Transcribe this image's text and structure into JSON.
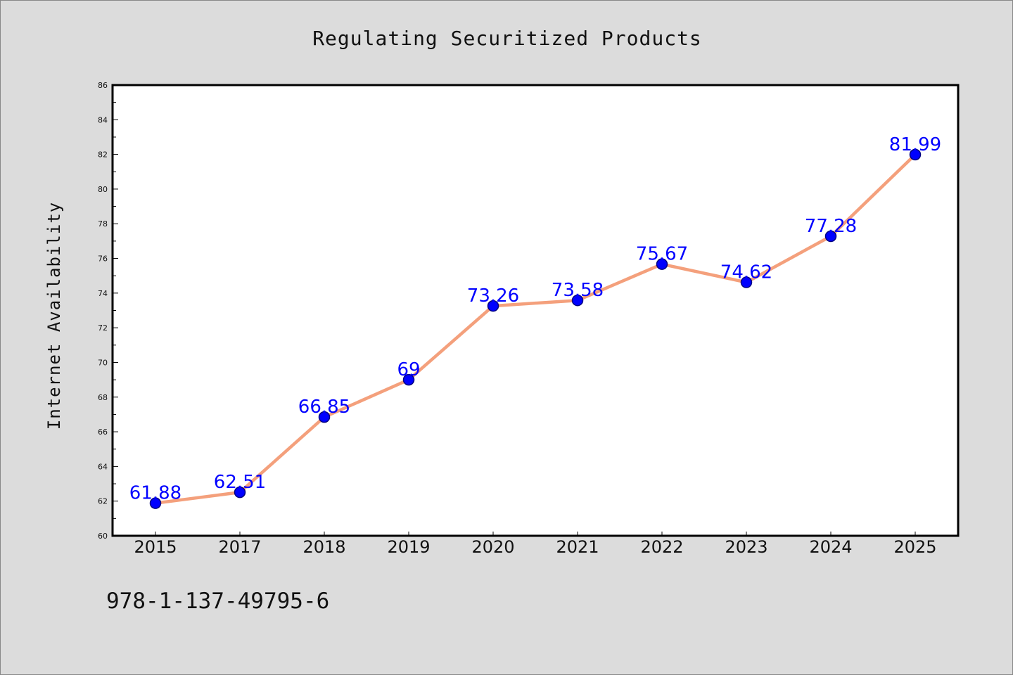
{
  "chart_data": {
    "type": "line",
    "title": "Regulating Securitized Products",
    "xlabel": "",
    "ylabel": "Internet Availability",
    "categories": [
      "2015",
      "2017",
      "2018",
      "2019",
      "2020",
      "2021",
      "2022",
      "2023",
      "2024",
      "2025"
    ],
    "series": [
      {
        "values": [
          61.88,
          62.51,
          66.85,
          69,
          73.26,
          73.58,
          75.67,
          74.62,
          77.28,
          81.99
        ],
        "data_labels": [
          "61.88",
          "62.51",
          "66.85",
          "69",
          "73.26",
          "73.58",
          "75.67",
          "74.62",
          "77.28",
          "81.99"
        ]
      }
    ],
    "ylim": [
      60,
      86
    ],
    "yticks": [
      60,
      62,
      64,
      66,
      68,
      70,
      72,
      74,
      76,
      78,
      80,
      82,
      84,
      86
    ],
    "ytick_labels": [
      "60",
      "62",
      "64",
      "66",
      "68",
      "70",
      "72",
      "74",
      "76",
      "78",
      "80",
      "82",
      "84",
      "86"
    ],
    "grid": false,
    "legend": "none",
    "colors": {
      "line": "#f4a07c",
      "marker": "#0000ff",
      "marker_edge": "#000080",
      "data_label": "#0000ff",
      "background": "#dcdcdc",
      "plot_background": "#ffffff"
    }
  },
  "footer": {
    "isbn": "978-1-137-49795-6"
  }
}
